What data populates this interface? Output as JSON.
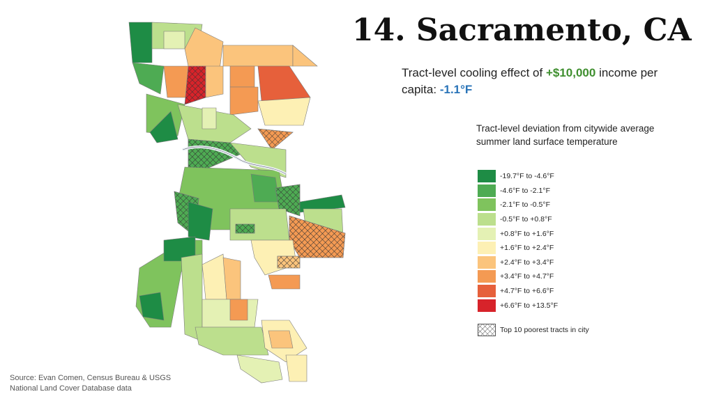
{
  "header": {
    "title": "14. Sacramento, CA"
  },
  "subtitle": {
    "parts": [
      {
        "text": "Tract-level cooling effect of",
        "color": "#222222"
      },
      {
        "text": "+$10,000",
        "color": "#3f8f2f"
      },
      {
        "text": "income per capita:",
        "color": "#222222"
      },
      {
        "text": "-1.1°F",
        "color": "#2a74b8"
      }
    ]
  },
  "legend": {
    "title": "Tract-level deviation from citywide average summer land surface temperature",
    "items": [
      {
        "label": "-19.7°F to -4.6°F",
        "color": "#1e8c45"
      },
      {
        "label": "-4.6°F to -2.1°F",
        "color": "#4eab53"
      },
      {
        "label": "-2.1°F to -0.5°F",
        "color": "#7fc35d"
      },
      {
        "label": "-0.5°F to +0.8°F",
        "color": "#bcdf8d"
      },
      {
        "label": "+0.8°F to +1.6°F",
        "color": "#e4f1b4"
      },
      {
        "label": "+1.6°F to +2.4°F",
        "color": "#fdf0b4"
      },
      {
        "label": "+2.4°F to +3.4°F",
        "color": "#fbc47c"
      },
      {
        "label": "+3.4°F to +4.7°F",
        "color": "#f49a53"
      },
      {
        "label": "+4.7°F to +6.6°F",
        "color": "#e6603b"
      },
      {
        "label": "+6.6°F to +13.5°F",
        "color": "#d7232a"
      }
    ],
    "hatch_label": "Top 10 poorest tracts in city"
  },
  "source": {
    "lines": [
      "Source: Evan Comen, Census Bureau & USGS",
      "National Land Cover Database data"
    ]
  }
}
